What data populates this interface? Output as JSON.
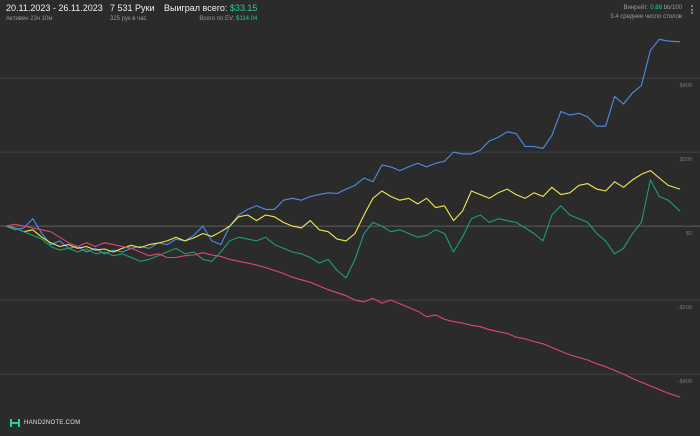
{
  "header": {
    "date_range": "20.11.2023 - 26.11.2023",
    "active": "Активен 23ч 10м",
    "hands": "7 531 Руки",
    "hands_per_hour": "325 рук в час",
    "won_label": "Выиграл всего: ",
    "won_value": "$33.15",
    "ev_label": "Всего по EV: ",
    "ev_value": "$114.04",
    "winrate_label": "Винрейт: ",
    "winrate_value": "0.88",
    "winrate_unit": " bb/100",
    "tables": "3.4 среднее число столов"
  },
  "brand": {
    "name": "HAND2NOTE.COM"
  },
  "colors": {
    "background": "#2b2b2b",
    "grid": "#474747",
    "zero_line": "#6e6e6e",
    "blue": "#4a8ee8",
    "yellow": "#f0ea4a",
    "green": "#1e9e6e",
    "red": "#e0457a",
    "accent_green": "#1fd19a"
  },
  "chart_data": {
    "type": "line",
    "x_unit": "hands",
    "x_range": [
      0,
      7531
    ],
    "ylim": [
      -470,
      530
    ],
    "y_ticks": [
      400,
      200,
      0,
      -200,
      -400
    ],
    "y_tick_labels": [
      "$400",
      "$200",
      "$0",
      "-$200",
      "-$400"
    ],
    "grid": true,
    "series": [
      {
        "key": "blue",
        "points": [
          [
            0,
            0
          ],
          [
            100,
            -10
          ],
          [
            200,
            -5
          ],
          [
            300,
            20
          ],
          [
            400,
            -20
          ],
          [
            500,
            -50
          ],
          [
            600,
            -40
          ],
          [
            700,
            -60
          ],
          [
            800,
            -55
          ],
          [
            900,
            -70
          ],
          [
            1000,
            -60
          ],
          [
            1100,
            -75
          ],
          [
            1200,
            -65
          ],
          [
            1300,
            -70
          ],
          [
            1400,
            -60
          ],
          [
            1500,
            -55
          ],
          [
            1600,
            -60
          ],
          [
            1700,
            -45
          ],
          [
            1800,
            -50
          ],
          [
            1900,
            -35
          ],
          [
            2000,
            -40
          ],
          [
            2100,
            -25
          ],
          [
            2200,
            0
          ],
          [
            2300,
            -40
          ],
          [
            2400,
            -50
          ],
          [
            2500,
            0
          ],
          [
            2600,
            30
          ],
          [
            2700,
            45
          ],
          [
            2800,
            55
          ],
          [
            2900,
            45
          ],
          [
            3000,
            45
          ],
          [
            3100,
            70
          ],
          [
            3200,
            75
          ],
          [
            3300,
            70
          ],
          [
            3400,
            80
          ],
          [
            3500,
            85
          ],
          [
            3600,
            90
          ],
          [
            3700,
            88
          ],
          [
            3800,
            100
          ],
          [
            3900,
            110
          ],
          [
            4000,
            130
          ],
          [
            4100,
            120
          ],
          [
            4200,
            165
          ],
          [
            4300,
            160
          ],
          [
            4400,
            150
          ],
          [
            4500,
            160
          ],
          [
            4600,
            170
          ],
          [
            4700,
            160
          ],
          [
            4800,
            170
          ],
          [
            4900,
            175
          ],
          [
            5000,
            200
          ],
          [
            5100,
            195
          ],
          [
            5200,
            195
          ],
          [
            5300,
            205
          ],
          [
            5400,
            230
          ],
          [
            5500,
            240
          ],
          [
            5600,
            255
          ],
          [
            5700,
            250
          ],
          [
            5800,
            215
          ],
          [
            5900,
            215
          ],
          [
            6000,
            210
          ],
          [
            6100,
            245
          ],
          [
            6200,
            310
          ],
          [
            6300,
            300
          ],
          [
            6400,
            305
          ],
          [
            6500,
            295
          ],
          [
            6600,
            270
          ],
          [
            6700,
            270
          ],
          [
            6800,
            350
          ],
          [
            6900,
            330
          ],
          [
            7000,
            360
          ],
          [
            7100,
            380
          ],
          [
            7200,
            475
          ],
          [
            7300,
            505
          ],
          [
            7400,
            500
          ],
          [
            7531,
            498
          ]
        ]
      },
      {
        "key": "yellow",
        "points": [
          [
            0,
            0
          ],
          [
            100,
            -5
          ],
          [
            200,
            -15
          ],
          [
            300,
            -10
          ],
          [
            400,
            -30
          ],
          [
            500,
            -45
          ],
          [
            600,
            -55
          ],
          [
            700,
            -50
          ],
          [
            800,
            -60
          ],
          [
            900,
            -55
          ],
          [
            1000,
            -65
          ],
          [
            1100,
            -62
          ],
          [
            1200,
            -70
          ],
          [
            1300,
            -60
          ],
          [
            1400,
            -52
          ],
          [
            1500,
            -58
          ],
          [
            1600,
            -50
          ],
          [
            1700,
            -46
          ],
          [
            1800,
            -40
          ],
          [
            1900,
            -30
          ],
          [
            2000,
            -40
          ],
          [
            2100,
            -32
          ],
          [
            2200,
            -20
          ],
          [
            2300,
            -28
          ],
          [
            2400,
            -15
          ],
          [
            2500,
            0
          ],
          [
            2600,
            25
          ],
          [
            2700,
            30
          ],
          [
            2800,
            15
          ],
          [
            2900,
            30
          ],
          [
            3000,
            25
          ],
          [
            3100,
            10
          ],
          [
            3200,
            0
          ],
          [
            3300,
            -5
          ],
          [
            3400,
            15
          ],
          [
            3500,
            -10
          ],
          [
            3600,
            -15
          ],
          [
            3700,
            -35
          ],
          [
            3800,
            -40
          ],
          [
            3900,
            -20
          ],
          [
            4000,
            30
          ],
          [
            4100,
            75
          ],
          [
            4200,
            95
          ],
          [
            4300,
            80
          ],
          [
            4400,
            70
          ],
          [
            4500,
            75
          ],
          [
            4600,
            60
          ],
          [
            4700,
            75
          ],
          [
            4800,
            50
          ],
          [
            4900,
            55
          ],
          [
            5000,
            15
          ],
          [
            5100,
            40
          ],
          [
            5200,
            95
          ],
          [
            5300,
            85
          ],
          [
            5400,
            75
          ],
          [
            5500,
            90
          ],
          [
            5600,
            100
          ],
          [
            5700,
            85
          ],
          [
            5800,
            75
          ],
          [
            5900,
            90
          ],
          [
            6000,
            80
          ],
          [
            6100,
            105
          ],
          [
            6200,
            85
          ],
          [
            6300,
            90
          ],
          [
            6400,
            110
          ],
          [
            6500,
            115
          ],
          [
            6600,
            100
          ],
          [
            6700,
            95
          ],
          [
            6800,
            120
          ],
          [
            6900,
            105
          ],
          [
            7000,
            125
          ],
          [
            7100,
            140
          ],
          [
            7200,
            150
          ],
          [
            7300,
            130
          ],
          [
            7400,
            110
          ],
          [
            7531,
            100
          ]
        ]
      },
      {
        "key": "green",
        "points": [
          [
            0,
            0
          ],
          [
            100,
            -5
          ],
          [
            200,
            -15
          ],
          [
            300,
            -25
          ],
          [
            400,
            -35
          ],
          [
            500,
            -55
          ],
          [
            600,
            -65
          ],
          [
            700,
            -60
          ],
          [
            800,
            -70
          ],
          [
            900,
            -62
          ],
          [
            1000,
            -75
          ],
          [
            1100,
            -70
          ],
          [
            1200,
            -80
          ],
          [
            1300,
            -75
          ],
          [
            1400,
            -85
          ],
          [
            1500,
            -95
          ],
          [
            1600,
            -90
          ],
          [
            1700,
            -80
          ],
          [
            1800,
            -70
          ],
          [
            1900,
            -60
          ],
          [
            2000,
            -75
          ],
          [
            2100,
            -70
          ],
          [
            2200,
            -90
          ],
          [
            2300,
            -95
          ],
          [
            2400,
            -70
          ],
          [
            2500,
            -40
          ],
          [
            2600,
            -30
          ],
          [
            2700,
            -35
          ],
          [
            2800,
            -40
          ],
          [
            2900,
            -30
          ],
          [
            3000,
            -50
          ],
          [
            3100,
            -60
          ],
          [
            3200,
            -70
          ],
          [
            3300,
            -75
          ],
          [
            3400,
            -85
          ],
          [
            3500,
            -100
          ],
          [
            3600,
            -90
          ],
          [
            3700,
            -120
          ],
          [
            3800,
            -140
          ],
          [
            3900,
            -90
          ],
          [
            4000,
            -20
          ],
          [
            4100,
            10
          ],
          [
            4200,
            0
          ],
          [
            4300,
            -15
          ],
          [
            4400,
            -10
          ],
          [
            4500,
            -20
          ],
          [
            4600,
            -30
          ],
          [
            4700,
            -25
          ],
          [
            4800,
            -10
          ],
          [
            4900,
            -20
          ],
          [
            5000,
            -70
          ],
          [
            5100,
            -30
          ],
          [
            5200,
            20
          ],
          [
            5300,
            30
          ],
          [
            5400,
            10
          ],
          [
            5500,
            20
          ],
          [
            5600,
            15
          ],
          [
            5700,
            10
          ],
          [
            5800,
            -5
          ],
          [
            5900,
            -20
          ],
          [
            6000,
            -40
          ],
          [
            6100,
            30
          ],
          [
            6200,
            55
          ],
          [
            6300,
            30
          ],
          [
            6400,
            20
          ],
          [
            6500,
            10
          ],
          [
            6600,
            -20
          ],
          [
            6700,
            -40
          ],
          [
            6800,
            -75
          ],
          [
            6900,
            -60
          ],
          [
            7000,
            -20
          ],
          [
            7100,
            10
          ],
          [
            7200,
            125
          ],
          [
            7300,
            80
          ],
          [
            7400,
            70
          ],
          [
            7531,
            40
          ]
        ]
      },
      {
        "key": "red",
        "points": [
          [
            0,
            0
          ],
          [
            100,
            5
          ],
          [
            200,
            0
          ],
          [
            300,
            -5
          ],
          [
            400,
            -10
          ],
          [
            500,
            -15
          ],
          [
            600,
            -30
          ],
          [
            700,
            -45
          ],
          [
            800,
            -55
          ],
          [
            900,
            -45
          ],
          [
            1000,
            -55
          ],
          [
            1100,
            -45
          ],
          [
            1200,
            -50
          ],
          [
            1300,
            -55
          ],
          [
            1400,
            -60
          ],
          [
            1500,
            -70
          ],
          [
            1600,
            -80
          ],
          [
            1700,
            -75
          ],
          [
            1800,
            -85
          ],
          [
            1900,
            -85
          ],
          [
            2000,
            -80
          ],
          [
            2100,
            -78
          ],
          [
            2200,
            -72
          ],
          [
            2300,
            -78
          ],
          [
            2400,
            -82
          ],
          [
            2500,
            -90
          ],
          [
            2600,
            -95
          ],
          [
            2700,
            -100
          ],
          [
            2800,
            -105
          ],
          [
            2900,
            -112
          ],
          [
            3000,
            -120
          ],
          [
            3100,
            -128
          ],
          [
            3200,
            -138
          ],
          [
            3300,
            -145
          ],
          [
            3400,
            -152
          ],
          [
            3500,
            -162
          ],
          [
            3600,
            -172
          ],
          [
            3700,
            -180
          ],
          [
            3800,
            -188
          ],
          [
            3900,
            -200
          ],
          [
            4000,
            -205
          ],
          [
            4100,
            -195
          ],
          [
            4200,
            -208
          ],
          [
            4300,
            -200
          ],
          [
            4400,
            -210
          ],
          [
            4500,
            -220
          ],
          [
            4600,
            -230
          ],
          [
            4700,
            -245
          ],
          [
            4800,
            -240
          ],
          [
            4900,
            -252
          ],
          [
            5000,
            -258
          ],
          [
            5100,
            -262
          ],
          [
            5200,
            -268
          ],
          [
            5300,
            -272
          ],
          [
            5400,
            -280
          ],
          [
            5500,
            -285
          ],
          [
            5600,
            -290
          ],
          [
            5700,
            -300
          ],
          [
            5800,
            -305
          ],
          [
            5900,
            -312
          ],
          [
            6000,
            -318
          ],
          [
            6100,
            -328
          ],
          [
            6200,
            -338
          ],
          [
            6300,
            -348
          ],
          [
            6400,
            -355
          ],
          [
            6500,
            -362
          ],
          [
            6600,
            -372
          ],
          [
            6700,
            -380
          ],
          [
            6800,
            -390
          ],
          [
            6900,
            -400
          ],
          [
            7000,
            -412
          ],
          [
            7100,
            -422
          ],
          [
            7200,
            -432
          ],
          [
            7300,
            -442
          ],
          [
            7400,
            -452
          ],
          [
            7531,
            -462
          ]
        ]
      }
    ]
  }
}
